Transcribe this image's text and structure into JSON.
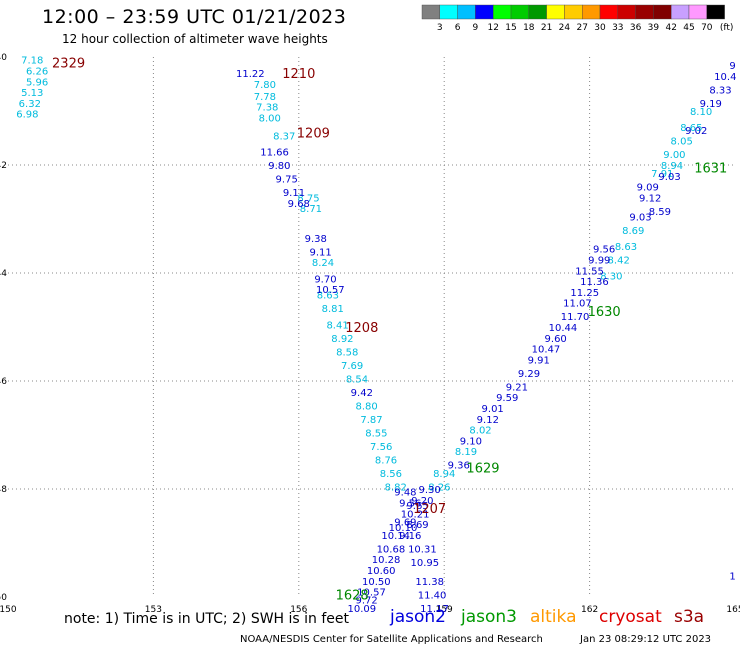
{
  "header": {
    "title": "12:00 – 23:59 UTC 01/21/2023",
    "subtitle": "12 hour collection of altimeter wave heights"
  },
  "footer": {
    "note": "note:  1) Time is in UTC;  2) SWH is in feet",
    "credit": "NOAA/NESDIS Center for Satellite Applications and Research",
    "timestamp": "Jan 23 08:29:12 UTC 2023"
  },
  "satellites": [
    {
      "name": "jason2",
      "color": "#0000dd"
    },
    {
      "name": "jason3",
      "color": "#009900"
    },
    {
      "name": "altika",
      "color": "#ff9900"
    },
    {
      "name": "cryosat",
      "color": "#dd0000"
    },
    {
      "name": "s3a",
      "color": "#990000"
    }
  ],
  "colors": {
    "grid": "#888888",
    "axis_tick_text": "#000000"
  },
  "chart_data": {
    "type": "scatter",
    "xlim": [
      150,
      165
    ],
    "ylim": [
      -50,
      -40
    ],
    "x_ticks": [
      "150",
      "153",
      "156",
      "159",
      "162",
      "165"
    ],
    "y_ticks": [
      "40",
      "42",
      "44",
      "46",
      "48",
      "50"
    ],
    "grid": true,
    "colorbar": {
      "unit": "(ft)",
      "labels": [
        "3",
        "6",
        "9",
        "12",
        "15",
        "18",
        "21",
        "24",
        "27",
        "30",
        "33",
        "36",
        "39",
        "42",
        "45",
        "70"
      ],
      "colors": [
        "#808080",
        "#00ffff",
        "#00bfff",
        "#0000ff",
        "#00ff00",
        "#00cc00",
        "#009900",
        "#ffff00",
        "#ffcc00",
        "#ff9900",
        "#ff0000",
        "#cc0000",
        "#990000",
        "#800000",
        "#c8a0ff",
        "#ff99ff",
        "#000000"
      ]
    },
    "time_labels": [
      {
        "text": "2329",
        "lon": 151.25,
        "lat": -40.1,
        "color": "#880000"
      },
      {
        "text": "1210",
        "lon": 156.0,
        "lat": -40.3,
        "color": "#880000"
      },
      {
        "text": "1209",
        "lon": 156.3,
        "lat": -41.4,
        "color": "#880000"
      },
      {
        "text": "1208",
        "lon": 157.3,
        "lat": -45.0,
        "color": "#880000"
      },
      {
        "text": "1207",
        "lon": 158.7,
        "lat": -48.35,
        "color": "#880000"
      },
      {
        "text": "1631",
        "lon": 164.5,
        "lat": -42.05,
        "color": "#008800"
      },
      {
        "text": "1630",
        "lon": 162.3,
        "lat": -44.7,
        "color": "#008800"
      },
      {
        "text": "1629",
        "lon": 159.8,
        "lat": -47.6,
        "color": "#008800"
      },
      {
        "text": "1628",
        "lon": 157.1,
        "lat": -49.95,
        "color": "#008800"
      }
    ],
    "series": [
      {
        "color": "#00bbdd",
        "points": [
          [
            150.5,
            -40.05,
            "7.18"
          ],
          [
            150.6,
            -40.25,
            "6.26"
          ],
          [
            150.6,
            -40.45,
            "5.96"
          ],
          [
            150.5,
            -40.65,
            "5.13"
          ],
          [
            150.45,
            -40.85,
            "6.32"
          ],
          [
            150.4,
            -41.05,
            "6.98"
          ],
          [
            155.3,
            -40.5,
            "7.80"
          ],
          [
            155.3,
            -40.72,
            "7.78"
          ],
          [
            155.35,
            -40.92,
            "7.38"
          ],
          [
            155.4,
            -41.12,
            "8.00"
          ],
          [
            155.7,
            -41.45,
            "8.37"
          ],
          [
            156.2,
            -42.6,
            "8.75"
          ],
          [
            156.25,
            -42.8,
            "8.71"
          ],
          [
            156.5,
            -43.8,
            "8.24"
          ],
          [
            156.6,
            -44.4,
            "8.63"
          ],
          [
            156.7,
            -44.65,
            "8.81"
          ],
          [
            156.8,
            -44.95,
            "8.41"
          ],
          [
            156.9,
            -45.2,
            "8.92"
          ],
          [
            157.0,
            -45.45,
            "8.58"
          ],
          [
            157.1,
            -45.7,
            "7.69"
          ],
          [
            157.2,
            -45.95,
            "8.54"
          ],
          [
            157.4,
            -46.45,
            "8.80"
          ],
          [
            157.5,
            -46.7,
            "7.87"
          ],
          [
            157.6,
            -46.95,
            "8.55"
          ],
          [
            157.7,
            -47.2,
            "7.56"
          ],
          [
            157.8,
            -47.45,
            "8.76"
          ],
          [
            157.9,
            -47.7,
            "8.56"
          ],
          [
            158.0,
            -47.95,
            "8.82"
          ],
          [
            159.0,
            -47.7,
            "8.94"
          ],
          [
            158.9,
            -47.95,
            "8.26"
          ],
          [
            159.45,
            -47.3,
            "8.19"
          ],
          [
            159.75,
            -46.9,
            "8.02"
          ],
          [
            162.45,
            -44.05,
            "8.30"
          ],
          [
            162.6,
            -43.75,
            "8.42"
          ],
          [
            162.75,
            -43.5,
            "8.63"
          ],
          [
            162.9,
            -43.2,
            "8.69"
          ],
          [
            163.5,
            -42.15,
            "7.91"
          ],
          [
            163.75,
            -41.8,
            "9.00"
          ],
          [
            163.9,
            -41.55,
            "8.05"
          ],
          [
            164.1,
            -41.3,
            "8.65"
          ],
          [
            164.3,
            -41.0,
            "8.10"
          ],
          [
            163.7,
            -42.0,
            "8.94"
          ]
        ]
      },
      {
        "color": "#0000cc",
        "points": [
          [
            155.0,
            -40.3,
            "11.22"
          ],
          [
            155.5,
            -41.75,
            "11.66"
          ],
          [
            155.6,
            -42.0,
            "9.80"
          ],
          [
            155.75,
            -42.25,
            "9.75"
          ],
          [
            155.9,
            -42.5,
            "9.11"
          ],
          [
            156.0,
            -42.7,
            "9.68"
          ],
          [
            156.35,
            -43.35,
            "9.38"
          ],
          [
            156.45,
            -43.6,
            "9.11"
          ],
          [
            156.55,
            -44.1,
            "9.70"
          ],
          [
            156.65,
            -44.3,
            "10.57"
          ],
          [
            157.3,
            -46.2,
            "9.42"
          ],
          [
            158.2,
            -48.05,
            "9.48"
          ],
          [
            158.3,
            -48.25,
            "9.56"
          ],
          [
            158.45,
            -48.3,
            "9.65"
          ],
          [
            158.4,
            -48.45,
            "10.21"
          ],
          [
            158.45,
            -48.65,
            "8.69"
          ],
          [
            158.15,
            -48.7,
            "10.10"
          ],
          [
            158.2,
            -48.6,
            "9.69"
          ],
          [
            158.3,
            -48.85,
            "9.16"
          ],
          [
            158.0,
            -48.85,
            "10.14"
          ],
          [
            157.9,
            -49.1,
            "10.68"
          ],
          [
            157.8,
            -49.3,
            "10.28"
          ],
          [
            157.7,
            -49.5,
            "10.60"
          ],
          [
            157.6,
            -49.7,
            "10.50"
          ],
          [
            157.5,
            -49.9,
            "10.57"
          ],
          [
            157.4,
            -50.05,
            "9.72"
          ],
          [
            157.3,
            -50.2,
            "10.09"
          ],
          [
            158.55,
            -49.1,
            "10.31"
          ],
          [
            158.6,
            -49.35,
            "10.95"
          ],
          [
            158.7,
            -49.7,
            "11.38"
          ],
          [
            158.75,
            -49.95,
            "11.40"
          ],
          [
            158.8,
            -50.2,
            "11.17"
          ],
          [
            158.7,
            -48.0,
            "9.30"
          ],
          [
            158.55,
            -48.2,
            "9.20"
          ],
          [
            159.3,
            -47.55,
            "9.36"
          ],
          [
            159.55,
            -47.1,
            "9.10"
          ],
          [
            159.9,
            -46.7,
            "9.12"
          ],
          [
            160.0,
            -46.5,
            "9.01"
          ],
          [
            160.3,
            -46.3,
            "9.59"
          ],
          [
            160.5,
            -46.1,
            "9.21"
          ],
          [
            160.75,
            -45.85,
            "9.29"
          ],
          [
            160.95,
            -45.6,
            "9.91"
          ],
          [
            161.1,
            -45.4,
            "10.47"
          ],
          [
            161.3,
            -45.2,
            "9.60"
          ],
          [
            161.45,
            -45.0,
            "10.44"
          ],
          [
            161.7,
            -44.8,
            "11.70"
          ],
          [
            161.75,
            -44.55,
            "11.07"
          ],
          [
            161.9,
            -44.35,
            "11.25"
          ],
          [
            162.1,
            -44.15,
            "11.36"
          ],
          [
            162.0,
            -43.95,
            "11.55"
          ],
          [
            162.2,
            -43.75,
            "9.99"
          ],
          [
            162.3,
            -43.55,
            "9.56"
          ],
          [
            163.05,
            -42.95,
            "9.03"
          ],
          [
            163.25,
            -42.6,
            "9.12"
          ],
          [
            163.2,
            -42.4,
            "9.09"
          ],
          [
            163.45,
            -42.85,
            "8.59"
          ],
          [
            163.65,
            -42.2,
            "9.03"
          ],
          [
            164.2,
            -41.35,
            "9.02"
          ],
          [
            164.5,
            -40.85,
            "9.19"
          ],
          [
            164.7,
            -40.6,
            "8.33"
          ],
          [
            164.8,
            -40.35,
            "10.4"
          ],
          [
            164.95,
            -40.15,
            "9"
          ],
          [
            164.95,
            -49.6,
            "1"
          ]
        ]
      }
    ]
  }
}
